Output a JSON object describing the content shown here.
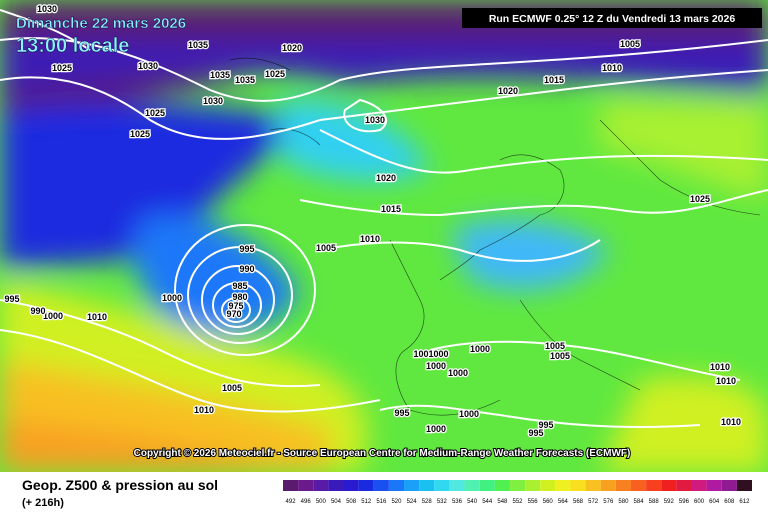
{
  "header": {
    "date": "Dimanche 22 mars 2026",
    "time": "13:00 locale",
    "run": "Run ECMWF 0.25° 12 Z du Vendredi 13 mars 2026"
  },
  "copyright": "Copyright © 2026 Meteociel.fr - Source European Centre for Medium-Range Weather Forecasts (ECMWF)",
  "footer": {
    "title": "Geop. Z500 & pression au sol",
    "subtitle": "(+ 216h)"
  },
  "legend": {
    "values": [
      492,
      496,
      500,
      504,
      508,
      512,
      516,
      520,
      524,
      528,
      532,
      536,
      540,
      544,
      548,
      552,
      556,
      560,
      564,
      568,
      572,
      576,
      580,
      584,
      588,
      592,
      596,
      600,
      604,
      608,
      612
    ],
    "colors": [
      "#5a1a6e",
      "#6a1a8a",
      "#5a1aa8",
      "#3a1ab8",
      "#2a1ad0",
      "#1a2ae0",
      "#1a50f0",
      "#1a78f8",
      "#1aa0f8",
      "#1ac0f0",
      "#30d8f0",
      "#50e8e0",
      "#50f0b0",
      "#40f080",
      "#50f050",
      "#80f040",
      "#a8f030",
      "#d0f020",
      "#f0f020",
      "#f8e020",
      "#f8c020",
      "#f8a020",
      "#f88020",
      "#f86020",
      "#f84020",
      "#f02020",
      "#e01a40",
      "#d01a80",
      "#b01aa0",
      "#901a90",
      "#301020"
    ]
  },
  "isobar_labels": [
    1030,
    1025,
    1030,
    1035,
    1020,
    1035,
    1035,
    1025,
    1030,
    1025,
    1025,
    1030,
    1015,
    1020,
    1005,
    1010,
    1020,
    1015,
    1010,
    1005,
    995,
    990,
    1000,
    985,
    980,
    975,
    970,
    1025,
    1010,
    1000,
    995,
    990,
    1001000,
    1000,
    1000,
    1000,
    1005,
    1005,
    1005,
    1010,
    995,
    1000,
    1000,
    995,
    995,
    1010,
    1010,
    1010
  ]
}
